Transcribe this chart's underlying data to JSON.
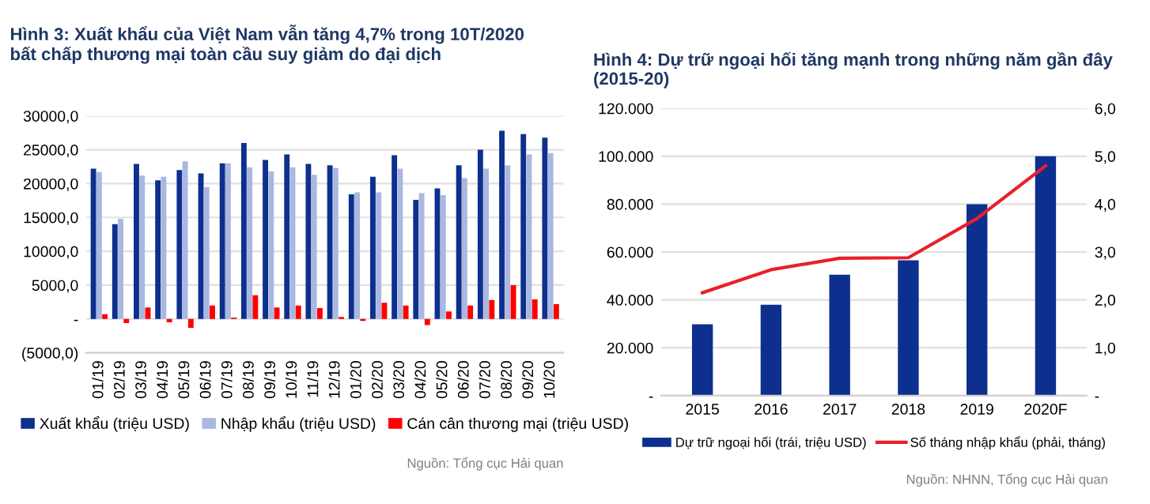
{
  "chart_data": [
    {
      "type": "bar",
      "title": "Hình 3: Xuất khẩu của Việt Nam vẫn tăng 4,7% trong 10T/2020\nbất chấp thương mại toàn cầu suy giảm do đại dịch",
      "categories": [
        "01/19",
        "02/19",
        "03/19",
        "04/19",
        "05/19",
        "06/19",
        "07/19",
        "08/19",
        "09/19",
        "10/19",
        "11/19",
        "12/19",
        "01/20",
        "02/20",
        "03/20",
        "04/20",
        "05/20",
        "06/20",
        "07/20",
        "08/20",
        "09/20",
        "10/20"
      ],
      "series": [
        {
          "name": "Xuất khẩu (triệu USD)",
          "color": "#0d2f8e",
          "values": [
            22200,
            14000,
            22900,
            20500,
            22000,
            21500,
            23000,
            26000,
            23500,
            24300,
            22900,
            22700,
            18400,
            21000,
            24200,
            17600,
            19300,
            22700,
            25000,
            27800,
            27300,
            26800
          ]
        },
        {
          "name": "Nhập khẩu (triệu USD)",
          "color": "#a9b8e0",
          "values": [
            21700,
            14800,
            21200,
            21000,
            23300,
            19500,
            23000,
            22400,
            21800,
            22400,
            21300,
            22300,
            18700,
            18700,
            22200,
            18600,
            18300,
            20800,
            22200,
            22700,
            24300,
            24500
          ]
        },
        {
          "name": "Cán cân thương mại (triệu USD)",
          "color": "#ff0000",
          "values": [
            700,
            -600,
            1700,
            -500,
            -1300,
            2000,
            200,
            3500,
            1700,
            2000,
            1600,
            300,
            -300,
            2400,
            2000,
            -900,
            1100,
            2000,
            2800,
            5000,
            2900,
            2200
          ]
        }
      ],
      "ylim": [
        -5000,
        30000
      ],
      "yticks": [
        {
          "value": -5000,
          "label": "(5000,0)"
        },
        {
          "value": 0,
          "label": "-"
        },
        {
          "value": 5000,
          "label": "5000,0"
        },
        {
          "value": 10000,
          "label": "10000,0"
        },
        {
          "value": 15000,
          "label": "15000,0"
        },
        {
          "value": 20000,
          "label": "20000,0"
        },
        {
          "value": 25000,
          "label": "25000,0"
        },
        {
          "value": 30000,
          "label": "30000,0"
        }
      ],
      "grid": "y",
      "legend": "bottom",
      "annotations": [
        "Nguồn: Tổng cục Hải quan"
      ]
    },
    {
      "type": "bar",
      "title": "Hình 4: Dự trữ ngoại hối tăng mạnh trong những năm gần đây\n(2015-20)",
      "categories": [
        "2015",
        "2016",
        "2017",
        "2018",
        "2019",
        "2020F"
      ],
      "series": [
        {
          "name": "Dự trữ ngoại hối (trái, triệu USD)",
          "color": "#0d2f8e",
          "values": [
            29800,
            38000,
            50500,
            56500,
            80000,
            100000
          ]
        },
        {
          "name": "Số tháng nhập khẩu (phải, tháng)",
          "type": "line",
          "axis": "y2",
          "color": "#e8202a",
          "values": [
            2.15,
            2.63,
            2.87,
            2.88,
            3.7,
            4.8
          ]
        }
      ],
      "ylim": [
        0,
        120000
      ],
      "yticks": [
        {
          "value": 0,
          "label": "-"
        },
        {
          "value": 20000,
          "label": "20.000"
        },
        {
          "value": 40000,
          "label": "40.000"
        },
        {
          "value": 60000,
          "label": "60.000"
        },
        {
          "value": 80000,
          "label": "80.000"
        },
        {
          "value": 100000,
          "label": "100.000"
        },
        {
          "value": 120000,
          "label": "120.000"
        }
      ],
      "y2lim": [
        0,
        6
      ],
      "y2ticks": [
        {
          "value": 0,
          "label": "-"
        },
        {
          "value": 1,
          "label": "1,0"
        },
        {
          "value": 2,
          "label": "2,0"
        },
        {
          "value": 3,
          "label": "3,0"
        },
        {
          "value": 4,
          "label": "4,0"
        },
        {
          "value": 5,
          "label": "5,0"
        },
        {
          "value": 6,
          "label": "6,0"
        }
      ],
      "grid": "y",
      "legend": "bottom",
      "annotations": [
        "Nguồn: NHNN, Tổng cục Hải quan"
      ]
    }
  ]
}
